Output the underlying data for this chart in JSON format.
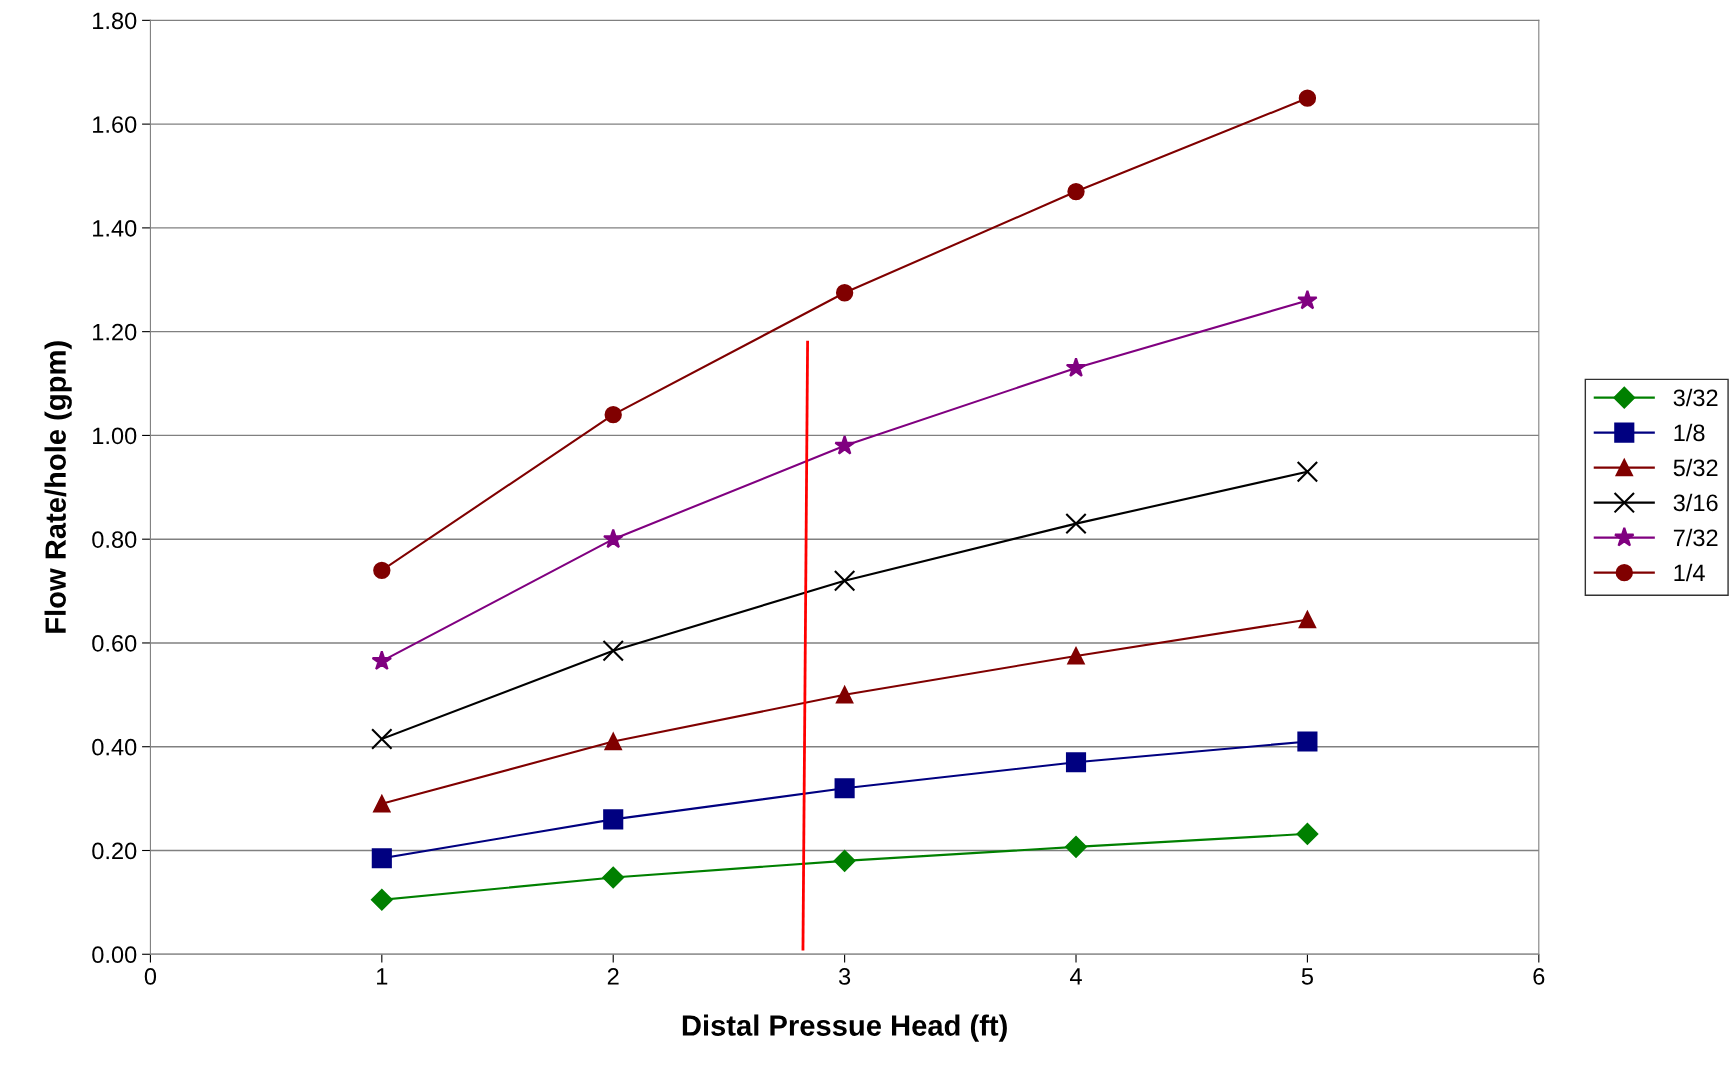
{
  "chart_data": {
    "type": "line",
    "xlabel": "Distal Pressue Head (ft)",
    "ylabel": "Flow Rate/hole (gpm)",
    "x": [
      1,
      2,
      3,
      4,
      5
    ],
    "series": [
      {
        "name": "3/32",
        "color": "#008000",
        "marker": "diamond",
        "values": [
          0.105,
          0.148,
          0.18,
          0.207,
          0.232
        ]
      },
      {
        "name": "1/8",
        "color": "#000080",
        "marker": "square",
        "values": [
          0.185,
          0.26,
          0.32,
          0.37,
          0.41
        ]
      },
      {
        "name": "5/32",
        "color": "#800000",
        "marker": "triangle",
        "values": [
          0.29,
          0.41,
          0.5,
          0.575,
          0.645
        ]
      },
      {
        "name": "3/16",
        "color": "#000000",
        "marker": "cross",
        "values": [
          0.415,
          0.585,
          0.72,
          0.83,
          0.93
        ]
      },
      {
        "name": "7/32",
        "color": "#800080",
        "marker": "star",
        "values": [
          0.565,
          0.8,
          0.98,
          1.13,
          1.26
        ]
      },
      {
        "name": "1/4",
        "color": "#800000",
        "marker": "circle",
        "values": [
          0.74,
          1.04,
          1.275,
          1.47,
          1.65
        ]
      },
      {
        "color": "#ff0000",
        "marker": "none",
        "x": [
          2.82,
          2.84
        ],
        "values": [
          0.01,
          1.18
        ]
      }
    ],
    "xlim": [
      0,
      6
    ],
    "xticks": [
      0,
      1,
      2,
      3,
      4,
      5,
      6
    ],
    "ylim": [
      0,
      1.8
    ],
    "yticks": [
      {
        "value": 0,
        "label": "0.00"
      },
      {
        "value": 0.2,
        "label": "0.20"
      },
      {
        "value": 0.4,
        "label": "0.40"
      },
      {
        "value": 0.6,
        "label": "0.60"
      },
      {
        "value": 0.8,
        "label": "0.80"
      },
      {
        "value": 1.0,
        "label": "1.00"
      },
      {
        "value": 1.2,
        "label": "1.20"
      },
      {
        "value": 1.4,
        "label": "1.40"
      },
      {
        "value": 1.6,
        "label": "1.60"
      },
      {
        "value": 1.8,
        "label": "1.80"
      }
    ],
    "grid": "y",
    "legend": "right"
  }
}
